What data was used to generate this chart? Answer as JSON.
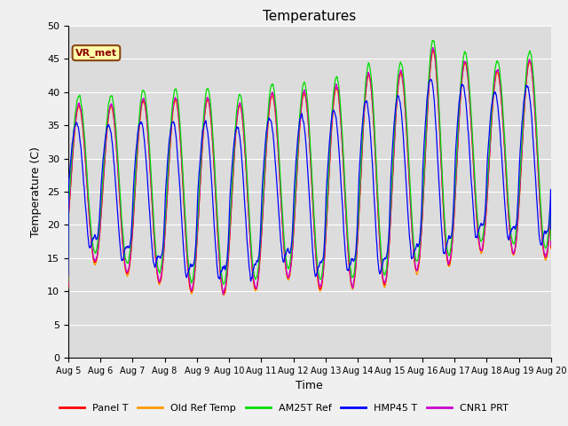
{
  "title": "Temperatures",
  "xlabel": "Time",
  "ylabel": "Temperature (C)",
  "ylim": [
    0,
    50
  ],
  "n_days": 15,
  "xtick_labels": [
    "Aug 5",
    "Aug 6",
    "Aug 7",
    "Aug 8",
    "Aug 9",
    "Aug 10",
    "Aug 11",
    "Aug 12",
    "Aug 13",
    "Aug 14",
    "Aug 15",
    "Aug 16",
    "Aug 17",
    "Aug 18",
    "Aug 19",
    "Aug 20"
  ],
  "series_colors": [
    "#ff0000",
    "#ff9900",
    "#00dd00",
    "#0000ff",
    "#cc00cc"
  ],
  "series_names": [
    "Panel T",
    "Old Ref Temp",
    "AM25T Ref",
    "HMP45 T",
    "CNR1 PRT"
  ],
  "annotation": "VR_met",
  "bg_color": "#dcdcdc",
  "fig_color": "#f0f0f0",
  "title_fontsize": 11,
  "axis_fontsize": 9,
  "legend_fontsize": 8,
  "min_temps": [
    15,
    13,
    12,
    10,
    10,
    9,
    13,
    10,
    11,
    10,
    13,
    13,
    16,
    16,
    15
  ],
  "max_temps": [
    38,
    38,
    39,
    39,
    39,
    38,
    40,
    40,
    41,
    43,
    43,
    47,
    44,
    43,
    45
  ]
}
